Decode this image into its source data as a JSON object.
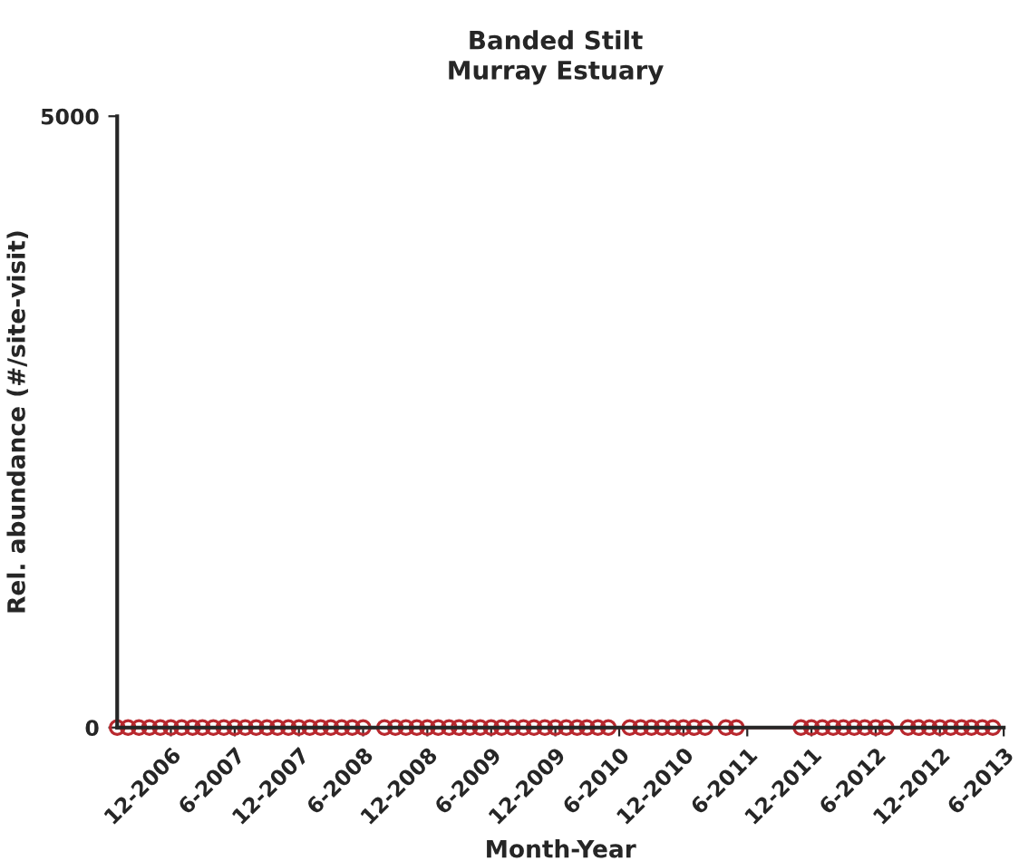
{
  "chart_data": {
    "type": "line",
    "title": "Banded Stilt",
    "subtitle": "Murray Estuary",
    "xlabel": "Month-Year",
    "ylabel": "Rel. abundance (#/site-visit)",
    "x": [
      "2006-07",
      "2006-08",
      "2006-09",
      "2006-10",
      "2006-11",
      "2006-12",
      "2007-01",
      "2007-02",
      "2007-03",
      "2007-04",
      "2007-05",
      "2007-06",
      "2007-07",
      "2007-08",
      "2007-09",
      "2007-10",
      "2007-11",
      "2007-12",
      "2008-01",
      "2008-02",
      "2008-03",
      "2008-04",
      "2008-05",
      "2008-06",
      "2008-08",
      "2008-09",
      "2008-10",
      "2008-11",
      "2008-12",
      "2009-01",
      "2009-02",
      "2009-03",
      "2009-04",
      "2009-05",
      "2009-06",
      "2009-07",
      "2009-08",
      "2009-09",
      "2009-10",
      "2009-11",
      "2009-12",
      "2010-01",
      "2010-02",
      "2010-03",
      "2010-04",
      "2010-05",
      "2010-07",
      "2010-08",
      "2010-09",
      "2010-10",
      "2010-11",
      "2010-12",
      "2011-01",
      "2011-02",
      "2011-04",
      "2011-05",
      "2011-11",
      "2011-12",
      "2012-01",
      "2012-02",
      "2012-03",
      "2012-04",
      "2012-05",
      "2012-06",
      "2012-07",
      "2012-09",
      "2012-10",
      "2012-11",
      "2012-12",
      "2013-01",
      "2013-02",
      "2013-03",
      "2013-04",
      "2013-05"
    ],
    "series": [
      {
        "color": "#b8282e",
        "values": [
          0,
          0,
          0,
          0,
          0,
          0,
          0,
          0,
          0,
          0,
          0,
          0,
          0,
          0,
          0,
          0,
          0,
          0,
          0,
          0,
          0,
          0,
          0,
          0,
          0,
          0,
          0,
          0,
          0,
          0,
          0,
          0,
          0,
          0,
          0,
          0,
          0,
          0,
          0,
          0,
          0,
          0,
          0,
          0,
          0,
          0,
          0,
          0,
          0,
          0,
          0,
          0,
          0,
          0,
          0,
          0,
          0,
          0,
          0,
          0,
          0,
          0,
          0,
          0,
          0,
          0,
          0,
          0,
          0,
          0,
          0,
          0,
          0,
          0
        ]
      }
    ],
    "xlim": [
      "2006-07",
      "2013-06"
    ],
    "xticks": [
      {
        "value": "2006-12",
        "label": "12-2006"
      },
      {
        "value": "2007-06",
        "label": "6-2007"
      },
      {
        "value": "2007-12",
        "label": "12-2007"
      },
      {
        "value": "2008-06",
        "label": "6-2008"
      },
      {
        "value": "2008-12",
        "label": "12-2008"
      },
      {
        "value": "2009-06",
        "label": "6-2009"
      },
      {
        "value": "2009-12",
        "label": "12-2009"
      },
      {
        "value": "2010-06",
        "label": "6-2010"
      },
      {
        "value": "2010-12",
        "label": "12-2010"
      },
      {
        "value": "2011-06",
        "label": "6-2011"
      },
      {
        "value": "2011-12",
        "label": "12-2011"
      },
      {
        "value": "2012-06",
        "label": "6-2012"
      },
      {
        "value": "2012-12",
        "label": "12-2012"
      },
      {
        "value": "2013-06",
        "label": "6-2013"
      }
    ],
    "ylim": [
      0,
      5000
    ],
    "yticks": [
      0,
      5000
    ],
    "marker": "circle",
    "line_style": "solid",
    "grid": false,
    "legend": false
  }
}
